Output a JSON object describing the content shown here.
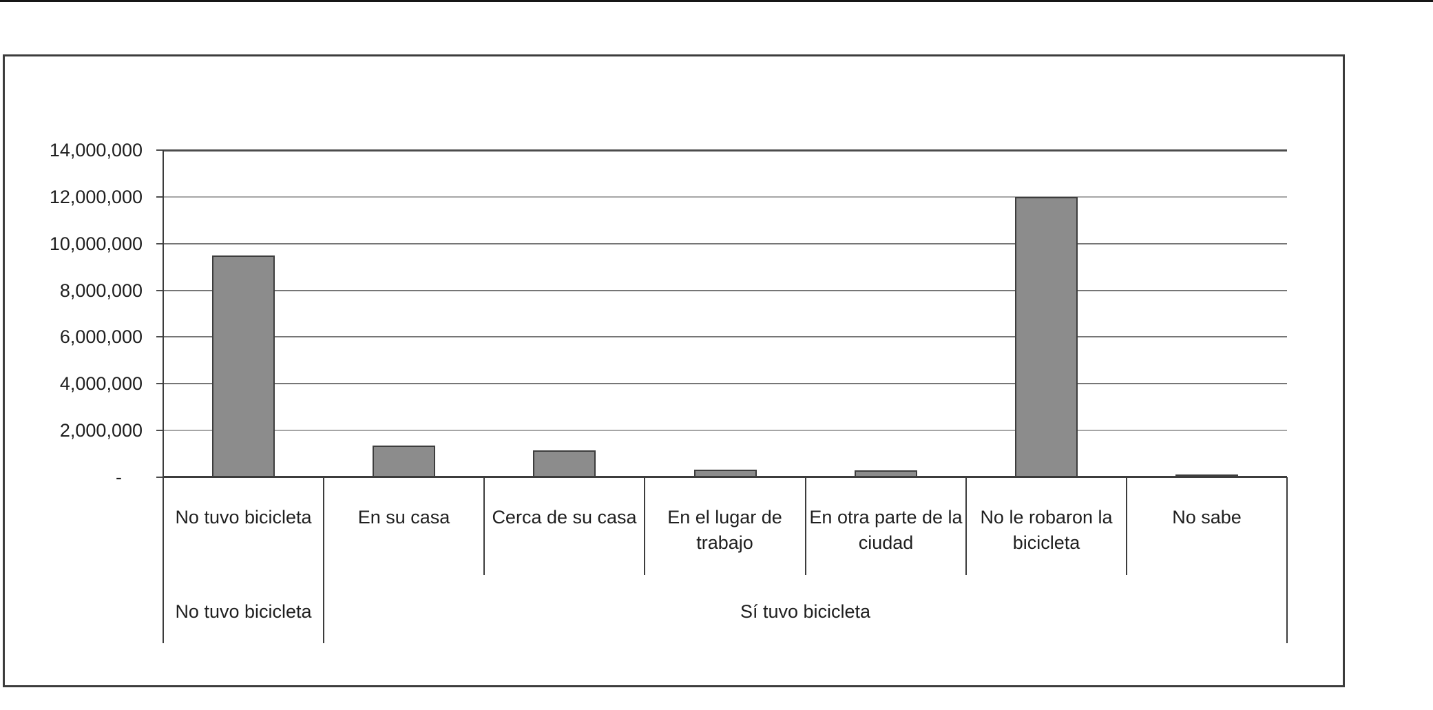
{
  "chart_data": {
    "type": "bar",
    "categories": [
      "No tuvo bicicleta",
      "En su casa",
      "Cerca de su casa",
      "En el lugar de trabajo",
      "En otra parte de la ciudad",
      "No le robaron la bicicleta",
      "No sabe"
    ],
    "values": [
      9500000,
      1350000,
      1150000,
      330000,
      300000,
      12000000,
      120000
    ],
    "groups": [
      {
        "label": "No tuvo bicicleta",
        "first_category": 0,
        "last_category": 0
      },
      {
        "label": "Sí tuvo bicicleta",
        "first_category": 1,
        "last_category": 6
      }
    ],
    "ytick_labels": [
      "14,000,000",
      "12,000,000",
      "10,000,000",
      "8,000,000",
      "6,000,000",
      "4,000,000",
      "2,000,000",
      "-"
    ],
    "ylim": [
      0,
      14000000
    ],
    "ytick_step": 2000000,
    "grid": true,
    "legend_position": "none",
    "bar_color": "#8c8c8c",
    "bar_border_color": "#3d3d3d"
  }
}
